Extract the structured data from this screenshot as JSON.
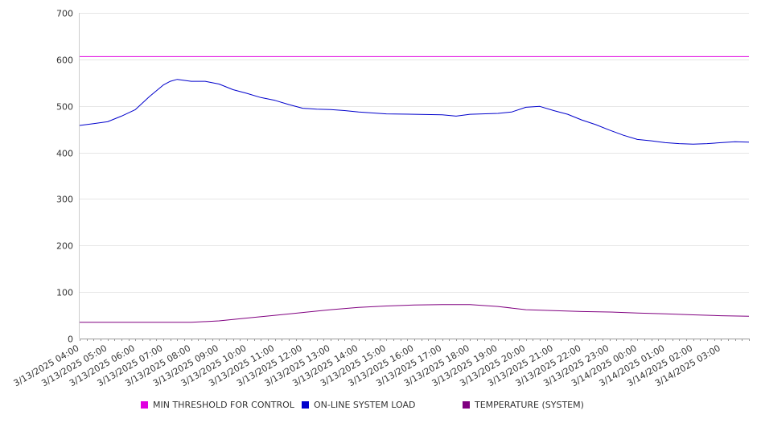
{
  "chart_data": {
    "type": "line",
    "title": "",
    "xlabel": "",
    "ylabel": "",
    "ylim": [
      0,
      700
    ],
    "yticks": [
      0,
      100,
      200,
      300,
      400,
      500,
      600,
      700
    ],
    "x_tick_labels": [
      "3/13/2025 04:00",
      "3/13/2025 05:00",
      "3/13/2025 06:00",
      "3/13/2025 07:00",
      "3/13/2025 08:00",
      "3/13/2025 09:00",
      "3/13/2025 10:00",
      "3/13/2025 11:00",
      "3/13/2025 12:00",
      "3/13/2025 13:00",
      "3/13/2025 14:00",
      "3/13/2025 15:00",
      "3/13/2025 16:00",
      "3/13/2025 17:00",
      "3/13/2025 18:00",
      "3/13/2025 19:00",
      "3/13/2025 20:00",
      "3/13/2025 21:00",
      "3/13/2025 22:00",
      "3/13/2025 23:00",
      "3/14/2025 00:00",
      "3/14/2025 01:00",
      "3/14/2025 02:00",
      "3/14/2025 03:00"
    ],
    "x_end": "3/14/2025 04:00",
    "grid": "horizontal",
    "legend_position": "bottom",
    "series": [
      {
        "name": "MIN THRESHOLD FOR CONTROL",
        "color": "#e000e0",
        "x": [
          "3/13/2025 04:00",
          "3/14/2025 04:00"
        ],
        "values": [
          606,
          606
        ]
      },
      {
        "name": "ON-LINE SYSTEM LOAD",
        "color": "#0000cc",
        "x": [
          "3/13/2025 04:00",
          "3/13/2025 04:30",
          "3/13/2025 05:00",
          "3/13/2025 05:30",
          "3/13/2025 06:00",
          "3/13/2025 06:30",
          "3/13/2025 07:00",
          "3/13/2025 07:15",
          "3/13/2025 07:30",
          "3/13/2025 08:00",
          "3/13/2025 08:30",
          "3/13/2025 09:00",
          "3/13/2025 09:30",
          "3/13/2025 10:00",
          "3/13/2025 10:30",
          "3/13/2025 11:00",
          "3/13/2025 11:30",
          "3/13/2025 12:00",
          "3/13/2025 12:30",
          "3/13/2025 13:00",
          "3/13/2025 13:30",
          "3/13/2025 14:00",
          "3/13/2025 15:00",
          "3/13/2025 16:00",
          "3/13/2025 17:00",
          "3/13/2025 17:30",
          "3/13/2025 18:00",
          "3/13/2025 19:00",
          "3/13/2025 19:30",
          "3/13/2025 20:00",
          "3/13/2025 20:30",
          "3/13/2025 21:00",
          "3/13/2025 21:30",
          "3/13/2025 22:00",
          "3/13/2025 22:30",
          "3/13/2025 23:00",
          "3/13/2025 23:30",
          "3/14/2025 00:00",
          "3/14/2025 00:30",
          "3/14/2025 01:00",
          "3/14/2025 01:30",
          "3/14/2025 02:00",
          "3/14/2025 02:30",
          "3/14/2025 03:00",
          "3/14/2025 03:30",
          "3/14/2025 04:00"
        ],
        "values": [
          458,
          462,
          466,
          478,
          492,
          520,
          545,
          553,
          557,
          553,
          553,
          547,
          535,
          527,
          518,
          512,
          503,
          495,
          493,
          492,
          490,
          487,
          483,
          482,
          481,
          478,
          482,
          484,
          487,
          497,
          499,
          490,
          482,
          470,
          460,
          448,
          437,
          428,
          425,
          421,
          419,
          418,
          419,
          421,
          423,
          422
        ]
      },
      {
        "name": "TEMPERATURE (SYSTEM)",
        "color": "#800080",
        "x": [
          "3/13/2025 04:00",
          "3/13/2025 05:00",
          "3/13/2025 06:00",
          "3/13/2025 07:00",
          "3/13/2025 08:00",
          "3/13/2025 09:00",
          "3/13/2025 10:00",
          "3/13/2025 11:00",
          "3/13/2025 12:00",
          "3/13/2025 13:00",
          "3/13/2025 14:00",
          "3/13/2025 15:00",
          "3/13/2025 16:00",
          "3/13/2025 17:00",
          "3/13/2025 18:00",
          "3/13/2025 19:00",
          "3/13/2025 20:00",
          "3/13/2025 21:00",
          "3/13/2025 22:00",
          "3/13/2025 23:00",
          "3/14/2025 00:00",
          "3/14/2025 01:00",
          "3/14/2025 02:00",
          "3/14/2025 03:00",
          "3/14/2025 04:00"
        ],
        "values": [
          35,
          35,
          35,
          35,
          35,
          38,
          44,
          50,
          56,
          62,
          67,
          70,
          72,
          73,
          73,
          69,
          62,
          60,
          58,
          57,
          55,
          53,
          51,
          49,
          48
        ]
      }
    ]
  }
}
